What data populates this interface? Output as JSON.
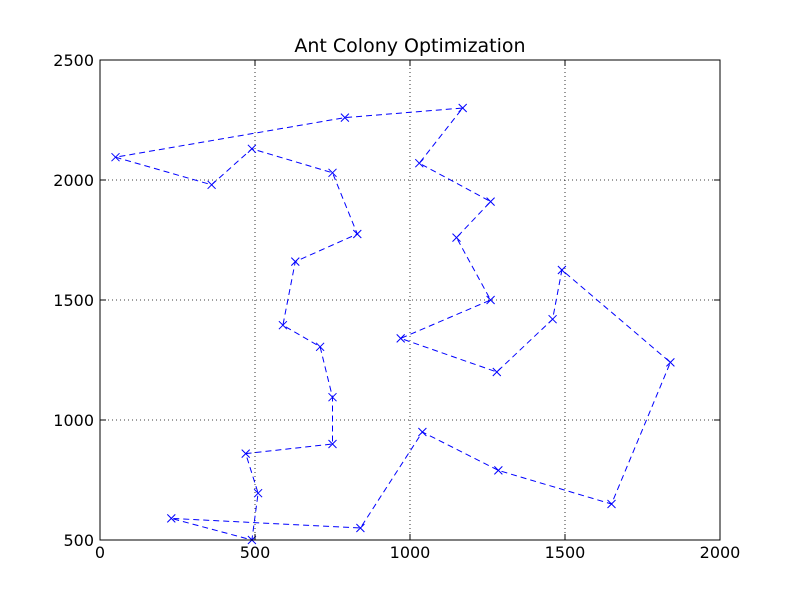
{
  "chart_data": {
    "type": "line",
    "title": "Ant Colony Optimization",
    "xlabel": "",
    "ylabel": "",
    "xlim": [
      0,
      2000
    ],
    "ylim": [
      500,
      2500
    ],
    "xticks": [
      "0",
      "500",
      "1000",
      "1500",
      "2000"
    ],
    "yticks": [
      "500",
      "1000",
      "1500",
      "2000",
      "2500"
    ],
    "grid": true,
    "line_style": "dashed",
    "marker": "x",
    "series_color": "#0000ff",
    "series": [
      {
        "points": [
          [
            50,
            2095
          ],
          [
            360,
            1980
          ],
          [
            490,
            2130
          ],
          [
            750,
            2030
          ],
          [
            830,
            1775
          ],
          [
            630,
            1660
          ],
          [
            590,
            1395
          ],
          [
            710,
            1305
          ],
          [
            750,
            1095
          ],
          [
            750,
            900
          ],
          [
            470,
            860
          ],
          [
            510,
            695
          ],
          [
            490,
            500
          ],
          [
            230,
            590
          ],
          [
            840,
            550
          ],
          [
            1040,
            950
          ],
          [
            1285,
            790
          ],
          [
            1650,
            650
          ],
          [
            1840,
            1240
          ],
          [
            1490,
            1625
          ],
          [
            1460,
            1420
          ],
          [
            1280,
            1200
          ],
          [
            970,
            1340
          ],
          [
            1260,
            1500
          ],
          [
            1150,
            1760
          ],
          [
            1260,
            1910
          ],
          [
            1030,
            2070
          ],
          [
            1170,
            2300
          ],
          [
            790,
            2260
          ],
          [
            50,
            2095
          ]
        ]
      }
    ]
  }
}
